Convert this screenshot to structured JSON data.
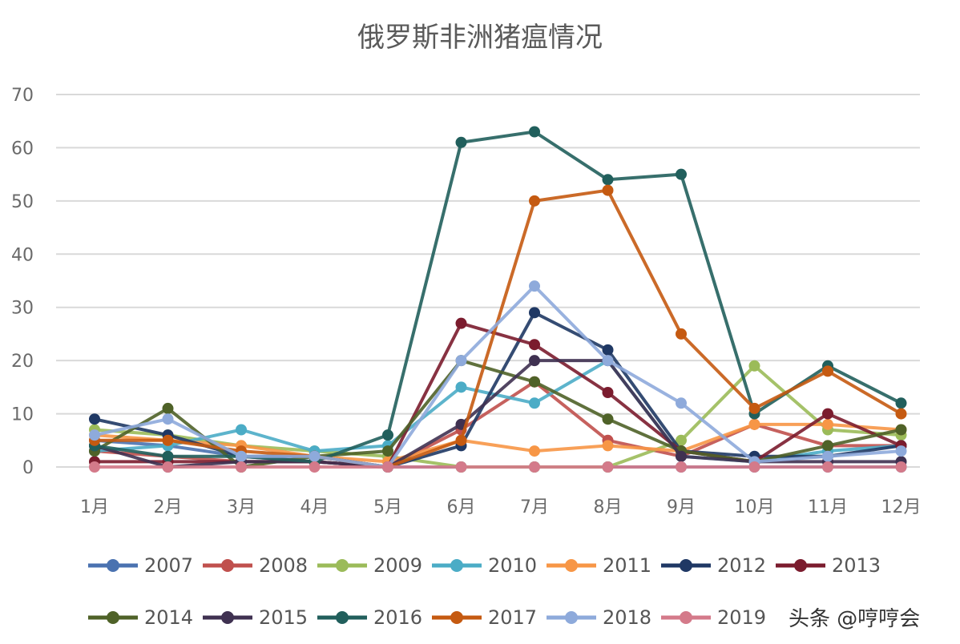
{
  "chart_data": {
    "type": "line",
    "title": "俄罗斯非洲猪瘟情况",
    "xlabel": "",
    "ylabel": "",
    "categories": [
      "1月",
      "2月",
      "3月",
      "4月",
      "5月",
      "6月",
      "7月",
      "8月",
      "9月",
      "10月",
      "11月",
      "12月"
    ],
    "ylim": [
      0,
      70
    ],
    "yticks": [
      0,
      10,
      20,
      30,
      40,
      50,
      60,
      70
    ],
    "grid": true,
    "legend_position": "bottom",
    "series": [
      {
        "name": "2007",
        "color": "#4a72b0",
        "values": [
          5,
          4,
          2,
          1,
          0,
          0,
          0,
          0,
          0,
          0,
          0,
          0
        ]
      },
      {
        "name": "2008",
        "color": "#c0504d",
        "values": [
          3,
          2,
          1,
          1,
          0,
          7,
          16,
          5,
          2,
          8,
          4,
          4
        ]
      },
      {
        "name": "2009",
        "color": "#9bbb59",
        "values": [
          7,
          6,
          4,
          3,
          2,
          0,
          0,
          0,
          5,
          19,
          7,
          6
        ]
      },
      {
        "name": "2010",
        "color": "#4bacc6",
        "values": [
          3,
          4,
          7,
          3,
          4,
          15,
          12,
          20,
          2,
          1,
          3,
          4
        ]
      },
      {
        "name": "2011",
        "color": "#f79646",
        "values": [
          6,
          5,
          4,
          2,
          1,
          5,
          3,
          4,
          3,
          8,
          8,
          7
        ]
      },
      {
        "name": "2012",
        "color": "#1f3864",
        "values": [
          9,
          6,
          2,
          2,
          0,
          4,
          29,
          22,
          3,
          2,
          2,
          4
        ]
      },
      {
        "name": "2013",
        "color": "#7b1c2e",
        "values": [
          1,
          1,
          1,
          1,
          0,
          27,
          23,
          14,
          3,
          1,
          10,
          4
        ]
      },
      {
        "name": "2014",
        "color": "#4f6228",
        "values": [
          3,
          11,
          0,
          2,
          3,
          20,
          16,
          9,
          3,
          1,
          4,
          7
        ]
      },
      {
        "name": "2015",
        "color": "#3f3151",
        "values": [
          4,
          0,
          1,
          1,
          0,
          8,
          20,
          20,
          2,
          1,
          1,
          1
        ]
      },
      {
        "name": "2016",
        "color": "#215f5c",
        "values": [
          4,
          2,
          2,
          1,
          6,
          61,
          63,
          54,
          55,
          10,
          19,
          12
        ]
      },
      {
        "name": "2017",
        "color": "#c55a11",
        "values": [
          5,
          5,
          3,
          2,
          0,
          5,
          50,
          52,
          25,
          11,
          18,
          10
        ]
      },
      {
        "name": "2018",
        "color": "#8eaadb",
        "values": [
          6,
          9,
          2,
          2,
          0,
          20,
          34,
          20,
          12,
          1,
          2,
          3
        ]
      },
      {
        "name": "2019",
        "color": "#d47a8a",
        "values": [
          0,
          0,
          0,
          0,
          0,
          0,
          0,
          0,
          0,
          0,
          0,
          0
        ]
      }
    ]
  },
  "watermark": "头条 @哼哼会"
}
